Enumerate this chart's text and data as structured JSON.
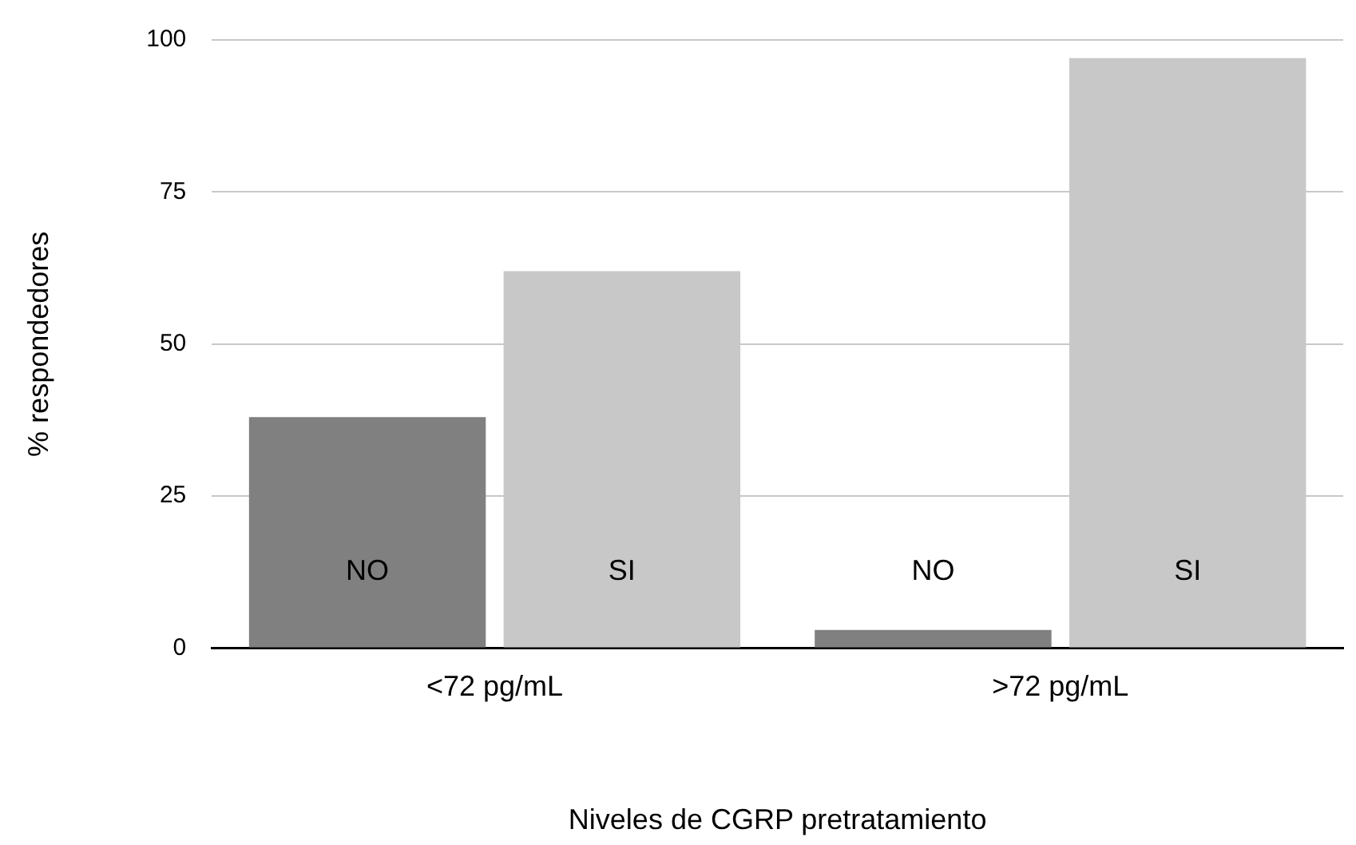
{
  "chart_data": {
    "type": "bar",
    "xlabel": "Niveles de CGRP pretratamiento",
    "ylabel": "% respondedores",
    "categories": [
      "<72 pg/mL",
      ">72 pg/mL"
    ],
    "series": [
      {
        "name": "NO",
        "color": "#808080",
        "values": [
          38,
          3
        ]
      },
      {
        "name": "SI",
        "color": "#c8c8c8",
        "values": [
          62,
          97
        ]
      }
    ],
    "ylim": [
      0,
      100
    ],
    "yticks": [
      0,
      25,
      50,
      75,
      100
    ],
    "grid": "y",
    "legend": false
  }
}
